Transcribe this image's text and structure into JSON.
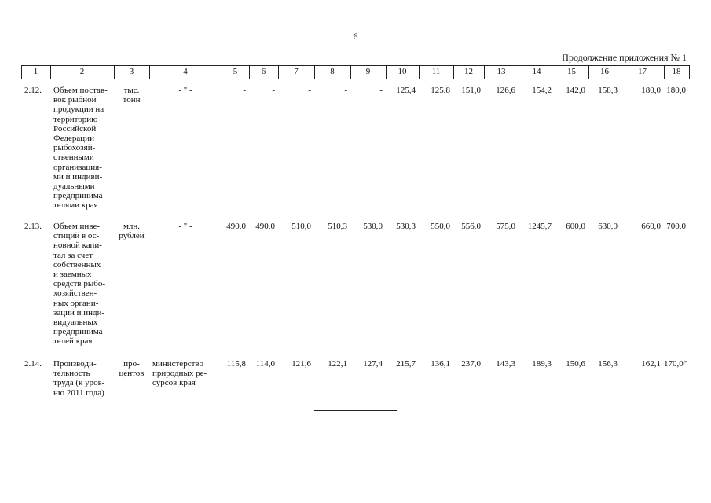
{
  "page_number": "6",
  "caption": "Продолжение приложения № 1",
  "table": {
    "header": [
      "1",
      "2",
      "3",
      "4",
      "5",
      "6",
      "7",
      "8",
      "9",
      "10",
      "11",
      "12",
      "13",
      "14",
      "15",
      "16",
      "17",
      "18"
    ],
    "rows": [
      [
        "2.12.",
        [
          "Объем постав-",
          "вок рыбной",
          "продукции на",
          "территорию",
          "Российской",
          "Федерации",
          "рыбохозяй-",
          "ственными",
          "организация-",
          "ми и индиви-",
          "дуальными",
          "предпринима-",
          "телями края"
        ],
        [
          "тыс.",
          "тонн"
        ],
        [
          "- \" -"
        ],
        "-",
        "-",
        "-",
        "-",
        "-",
        "125,4",
        "125,8",
        "151,0",
        "126,6",
        "154,2",
        "142,0",
        "158,3",
        "180,0",
        "180,0"
      ],
      [
        "2.13.",
        [
          "Объем инве-",
          "стиций в ос-",
          "новной капи-",
          "тал за счет",
          "собственных",
          "и заемных",
          "средств рыбо-",
          "хозяйствен-",
          "ных органи-",
          "заций и инди-",
          "видуальных",
          "предпринима-",
          "телей края"
        ],
        [
          "млн.",
          "рублей"
        ],
        [
          "- \" -"
        ],
        "490,0",
        "490,0",
        "510,0",
        "510,3",
        "530,0",
        "530,3",
        "550,0",
        "556,0",
        "575,0",
        "1245,7",
        "600,0",
        "630,0",
        "660,0",
        "700,0"
      ],
      [
        "2.14.",
        [
          "Производи-",
          "тельность",
          "труда (к уров-",
          "ню 2011 года)"
        ],
        [
          "про-",
          "центов"
        ],
        [
          "министерство",
          "природных ре-",
          "сурсов края"
        ],
        "115,8",
        "114,0",
        "121,6",
        "122,1",
        "127,4",
        "215,7",
        "136,1",
        "237,0",
        "143,3",
        "189,3",
        "150,6",
        "156,3",
        "162,1",
        "170,0\""
      ]
    ]
  }
}
